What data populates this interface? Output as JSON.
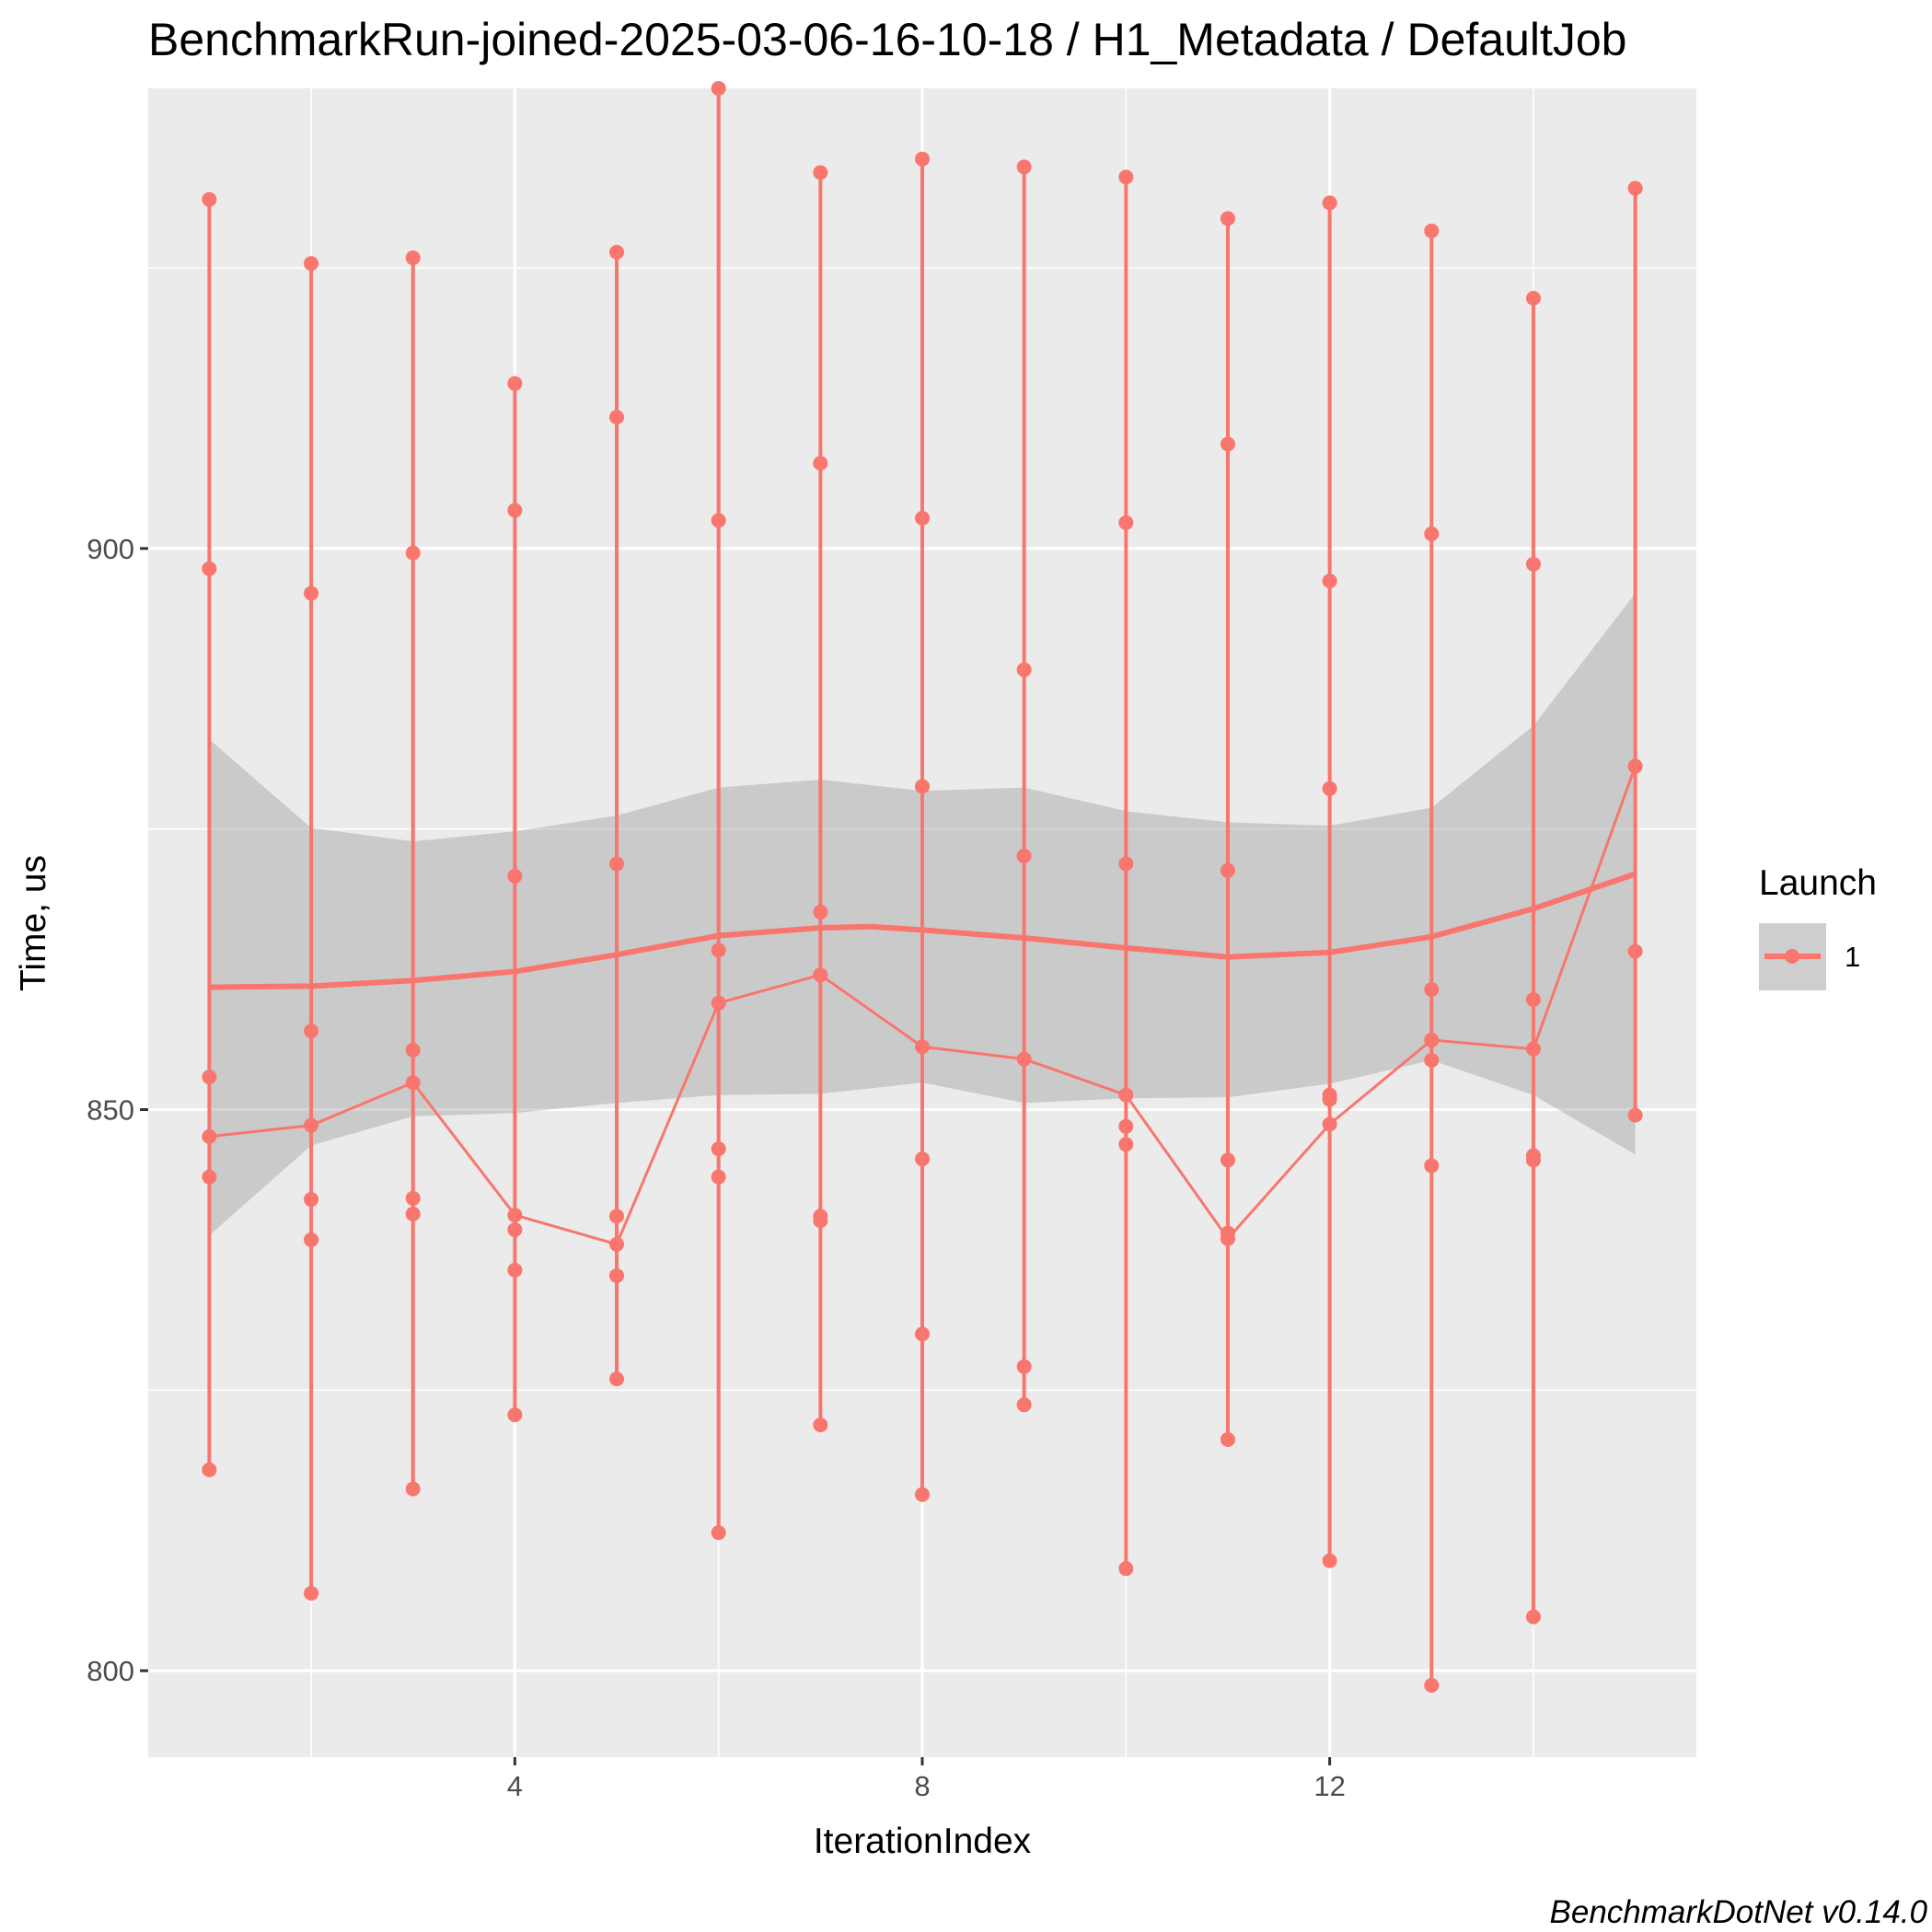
{
  "chart_data": {
    "type": "line",
    "title": "BenchmarkRun-joined-2025-03-06-16-10-18 / H1_Metadata / DefaultJob",
    "xlabel": "IterationIndex",
    "ylabel": "Time, us",
    "caption": "BenchmarkDotNet v0.14.0",
    "xlim": [
      0.4,
      15.6
    ],
    "ylim": [
      792.3,
      941.0
    ],
    "x_ticks": [
      4,
      8,
      12
    ],
    "x_tick_labels": [
      "4",
      "8",
      "12"
    ],
    "y_ticks": [
      800,
      850,
      900
    ],
    "y_tick_labels": [
      "800",
      "850",
      "900"
    ],
    "grid": true,
    "legend": {
      "title": "Launch",
      "position": "right",
      "entries": [
        "1"
      ]
    },
    "colors": {
      "series": "#F8766D",
      "panel": "#EBEBEB",
      "grid": "#FFFFFF",
      "ribbon": "#BDBDBD"
    },
    "series": [
      {
        "name": "1",
        "x": [
          1,
          2,
          3,
          4,
          5,
          6,
          7,
          8,
          9,
          10,
          11,
          12,
          13,
          14,
          15
        ],
        "runs": [
          [
            931.1,
            898.2,
            852.9,
            847.6,
            844.0,
            817.9
          ],
          [
            925.4,
            896.0,
            857.0,
            848.6,
            842.0,
            838.4,
            806.9
          ],
          [
            925.9,
            899.6,
            855.3,
            852.4,
            842.1,
            840.7,
            816.2
          ],
          [
            914.7,
            903.4,
            870.8,
            840.6,
            839.3,
            835.7,
            822.8
          ],
          [
            926.4,
            911.7,
            871.9,
            840.5,
            838.0,
            835.2,
            826.0
          ],
          [
            941.0,
            902.5,
            864.2,
            859.5,
            846.5,
            844.0,
            812.3
          ],
          [
            933.5,
            907.6,
            867.6,
            862.0,
            840.5,
            840.1,
            821.9
          ],
          [
            934.7,
            902.7,
            878.8,
            855.6,
            845.6,
            830.0,
            815.7
          ],
          [
            934.0,
            889.2,
            872.6,
            854.5,
            827.1,
            823.7
          ],
          [
            933.1,
            902.3,
            871.9,
            851.3,
            848.5,
            846.9,
            809.1
          ],
          [
            929.4,
            909.3,
            871.3,
            845.5,
            839.0,
            838.5,
            820.6
          ],
          [
            930.8,
            897.1,
            878.6,
            851.3,
            850.9,
            848.7,
            809.8
          ],
          [
            928.3,
            901.3,
            860.7,
            856.2,
            854.4,
            845.0,
            798.7
          ],
          [
            922.3,
            898.6,
            859.8,
            855.4,
            845.9,
            845.5,
            804.8
          ],
          [
            932.1,
            880.6,
            864.1,
            849.5
          ]
        ],
        "means": [
          847.6,
          848.6,
          852.4,
          840.6,
          838.0,
          859.5,
          862.0,
          855.6,
          854.5,
          851.3,
          838.5,
          848.7,
          856.2,
          855.4,
          880.6
        ],
        "smooth": [
          [
            1,
            860.9
          ],
          [
            2,
            861.0
          ],
          [
            3,
            861.5
          ],
          [
            4,
            862.3
          ],
          [
            5,
            863.8
          ],
          [
            6,
            865.5
          ],
          [
            7,
            866.2
          ],
          [
            7.5,
            866.3
          ],
          [
            8,
            866.0
          ],
          [
            9,
            865.3
          ],
          [
            10,
            864.4
          ],
          [
            11,
            863.6
          ],
          [
            12,
            864.0
          ],
          [
            13,
            865.4
          ],
          [
            14,
            867.9
          ],
          [
            15,
            871.0
          ]
        ],
        "ribbon_upper": [
          [
            1,
            883.0
          ],
          [
            2,
            875.1
          ],
          [
            3,
            873.9
          ],
          [
            4,
            874.8
          ],
          [
            5,
            876.2
          ],
          [
            6,
            878.7
          ],
          [
            7,
            879.4
          ],
          [
            8,
            878.4
          ],
          [
            9,
            878.7
          ],
          [
            10,
            876.6
          ],
          [
            11,
            875.6
          ],
          [
            12,
            875.3
          ],
          [
            13,
            876.9
          ],
          [
            14,
            884.2
          ],
          [
            15,
            896.0
          ]
        ],
        "ribbon_lower": [
          [
            1,
            838.8
          ],
          [
            2,
            846.8
          ],
          [
            3,
            849.4
          ],
          [
            4,
            849.7
          ],
          [
            5,
            850.6
          ],
          [
            6,
            851.3
          ],
          [
            7,
            851.4
          ],
          [
            8,
            852.4
          ],
          [
            9,
            850.6
          ],
          [
            10,
            851.0
          ],
          [
            11,
            851.1
          ],
          [
            12,
            852.3
          ],
          [
            13,
            854.4
          ],
          [
            14,
            851.3
          ],
          [
            15,
            846.0
          ]
        ]
      }
    ]
  }
}
